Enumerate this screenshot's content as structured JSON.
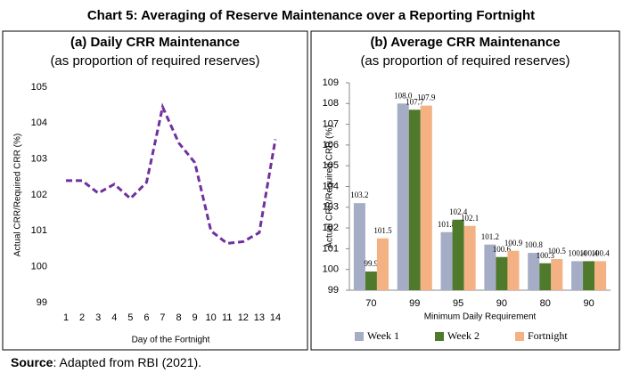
{
  "title": "Chart 5: Averaging of Reserve Maintenance over a Reporting Fortnight",
  "source": {
    "label": "Source",
    "text": ": Adapted from RBI (2021)."
  },
  "chart_data": [
    {
      "type": "line",
      "title": "(a) Daily CRR Maintenance",
      "subtitle": "(as proportion of required reserves)",
      "x_label": "Day of the Fortnight",
      "y_label": "Actual CRR/Required CRR (%)",
      "categories": [
        "1",
        "2",
        "3",
        "4",
        "5",
        "6",
        "7",
        "8",
        "9",
        "10",
        "11",
        "12",
        "13",
        "14"
      ],
      "values": [
        102.4,
        102.4,
        102.05,
        102.3,
        101.9,
        102.35,
        104.45,
        103.45,
        102.9,
        101.0,
        100.65,
        100.7,
        100.95,
        103.55
      ],
      "color": "#7030a0",
      "ylim": [
        99,
        105
      ],
      "yticks": [
        99,
        100,
        101,
        102,
        103,
        104,
        105
      ]
    },
    {
      "type": "bar",
      "title": "(b) Average CRR Maintenance",
      "subtitle": "(as proportion of required reserves)",
      "x_label": "Minimum Daily Requirement",
      "y_label": "Actual CRR/Required CRR (%)",
      "categories": [
        "70",
        "99",
        "95",
        "90",
        "80",
        "90"
      ],
      "series": [
        {
          "name": "Week 1",
          "color": "#a5adc6",
          "values": [
            103.2,
            108.0,
            101.8,
            101.2,
            100.8,
            100.4
          ],
          "value_labels": [
            "103.2",
            "108.0",
            "101.8",
            "101.2",
            "100.8",
            "100.4"
          ]
        },
        {
          "name": "Week 2",
          "color": "#4f7a2c",
          "values": [
            99.9,
            107.7,
            102.4,
            100.6,
            100.3,
            100.4
          ],
          "value_labels": [
            "99.9",
            "107.7",
            "102.4",
            "100.6",
            "100.3",
            "100.4"
          ]
        },
        {
          "name": "Fortnight",
          "color": "#f4b183",
          "values": [
            101.5,
            107.9,
            102.1,
            100.9,
            100.5,
            100.4
          ],
          "value_labels": [
            "101.5",
            "107.9",
            "102.1",
            "100.9",
            "100.5",
            "100.4"
          ]
        }
      ],
      "ylim": [
        99,
        109
      ],
      "yticks": [
        99,
        100,
        101,
        102,
        103,
        104,
        105,
        106,
        107,
        108,
        109
      ]
    }
  ]
}
